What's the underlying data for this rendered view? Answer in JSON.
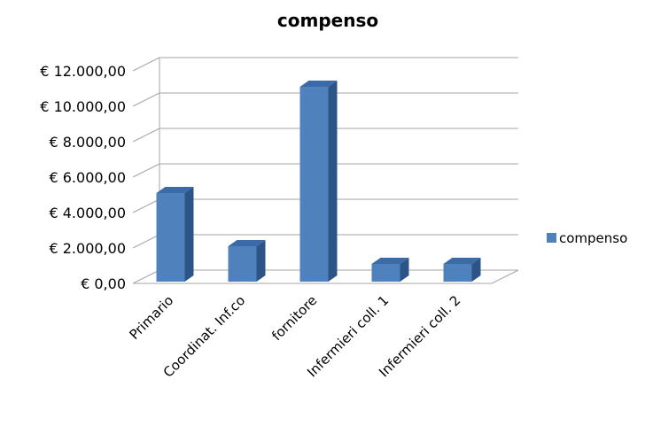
{
  "chart_data": {
    "type": "bar",
    "title": "compenso",
    "categories": [
      "Primario",
      "Coordinat. Inf.co",
      "fornitore",
      "Infermieri coll. 1",
      "Infermieri coll. 2"
    ],
    "series": [
      {
        "name": "compenso",
        "values": [
          5000,
          2000,
          11000,
          1000,
          1000
        ]
      }
    ],
    "ylim": [
      0,
      12000
    ],
    "yticks": [
      0,
      2000,
      4000,
      6000,
      8000,
      10000,
      12000
    ],
    "ytick_labels": [
      "€ 0,00",
      "€ 2.000,00",
      "€ 4.000,00",
      "€ 6.000,00",
      "€ 8.000,00",
      "€ 10.000,00",
      "€ 12.000,00"
    ],
    "grid": true,
    "legend_position": "right",
    "bar_style": "3d-column",
    "colors": {
      "bar_front": "#4F81BD",
      "bar_side": "#2C5487",
      "bar_top": "#3A6BA8",
      "grid": "#A6A6A6"
    }
  }
}
